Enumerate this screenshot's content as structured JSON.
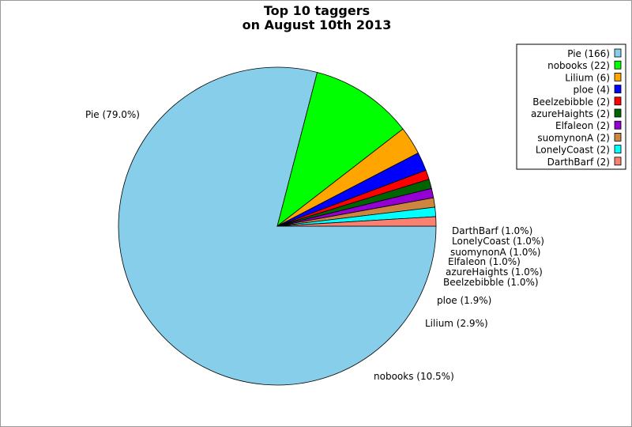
{
  "chart_data": {
    "type": "pie",
    "title_lines": [
      "Top 10 taggers",
      "on August 10th 2013"
    ],
    "slices": [
      {
        "name": "Pie",
        "count": 166,
        "percent_label": "79.0%",
        "legend": "Pie (166)",
        "label": "Pie (79.0%)",
        "color": "#87ceeb"
      },
      {
        "name": "nobooks",
        "count": 22,
        "percent_label": "10.5%",
        "legend": "nobooks (22)",
        "label": "nobooks (10.5%)",
        "color": "#00ff00"
      },
      {
        "name": "Lilium",
        "count": 6,
        "percent_label": "2.9%",
        "legend": "Lilium (6)",
        "label": "Lilium (2.9%)",
        "color": "#ffa500"
      },
      {
        "name": "ploe",
        "count": 4,
        "percent_label": "1.9%",
        "legend": "ploe (4)",
        "label": "ploe (1.9%)",
        "color": "#0000ff"
      },
      {
        "name": "Beelzebibble",
        "count": 2,
        "percent_label": "1.0%",
        "legend": "Beelzebibble (2)",
        "label": "Beelzebibble (1.0%)",
        "color": "#ff0000"
      },
      {
        "name": "azureHaights",
        "count": 2,
        "percent_label": "1.0%",
        "legend": "azureHaights (2)",
        "label": "azureHaights (1.0%)",
        "color": "#006400"
      },
      {
        "name": "Elfaleon",
        "count": 2,
        "percent_label": "1.0%",
        "legend": "Elfaleon (2)",
        "label": "Elfaleon (1.0%)",
        "color": "#9400d3"
      },
      {
        "name": "suomynonA",
        "count": 2,
        "percent_label": "1.0%",
        "legend": "suomynonA (2)",
        "label": "suomynonA (1.0%)",
        "color": "#cd853f"
      },
      {
        "name": "LonelyCoast",
        "count": 2,
        "percent_label": "1.0%",
        "legend": "LonelyCoast (2)",
        "label": "LonelyCoast (1.0%)",
        "color": "#00ffff"
      },
      {
        "name": "DarthBarf",
        "count": 2,
        "percent_label": "1.0%",
        "legend": "DarthBarf (2)",
        "label": "DarthBarf (1.0%)",
        "color": "#fa8072"
      }
    ],
    "legend_placement": "top-right",
    "start_angle": "3 o'clock, clockwise"
  }
}
